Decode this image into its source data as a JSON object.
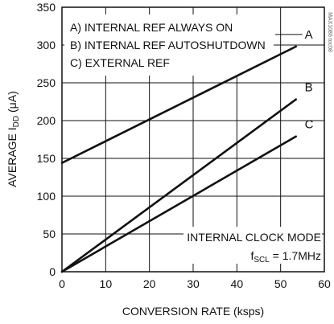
{
  "chart_data": {
    "type": "line",
    "xlabel": "CONVERSION RATE (ksps)",
    "ylabel": "AVERAGE I",
    "ylabel_sub": "DD",
    "ylabel_unit": " (μA)",
    "xlim": [
      0,
      60
    ],
    "ylim": [
      0,
      350
    ],
    "x_ticks": [
      0,
      10,
      20,
      30,
      40,
      50,
      60
    ],
    "y_ticks": [
      0,
      50,
      100,
      150,
      200,
      250,
      300,
      350
    ],
    "grid": true,
    "legend": [
      "A) INTERNAL REF ALWAYS ON",
      "B) INTERNAL REF AUTOSHUTDOWN",
      "C) EXTERNAL REF"
    ],
    "annotation_line1": "INTERNAL CLOCK MODE",
    "annotation_f": "f",
    "annotation_sub": "SCL",
    "annotation_value": " = 1.7MHz",
    "watermark": "MAX1086 toc08",
    "series": [
      {
        "name": "A",
        "x": [
          0,
          53.5
        ],
        "y": [
          144,
          298
        ]
      },
      {
        "name": "B",
        "x": [
          0,
          53.5
        ],
        "y": [
          0,
          228
        ]
      },
      {
        "name": "C",
        "x": [
          0,
          53.5
        ],
        "y": [
          0,
          179
        ]
      }
    ]
  }
}
